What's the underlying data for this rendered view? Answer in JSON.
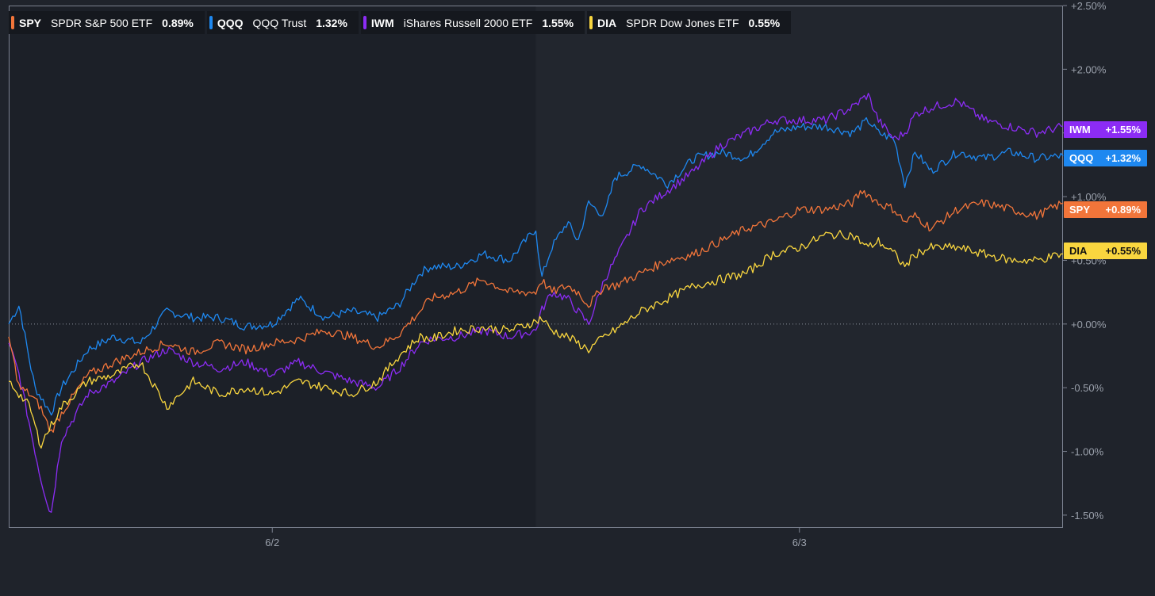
{
  "legend": [
    {
      "ticker": "SPY",
      "name": "SPDR S&P 500 ETF",
      "change": "0.89%",
      "color": "#f2753a"
    },
    {
      "ticker": "QQQ",
      "name": "QQQ Trust",
      "change": "1.32%",
      "color": "#1e88f0"
    },
    {
      "ticker": "IWM",
      "name": "iShares Russell 2000 ETF",
      "change": "1.55%",
      "color": "#8c2cf5"
    },
    {
      "ticker": "DIA",
      "name": "SPDR Dow Jones ETF",
      "change": "0.55%",
      "color": "#f9d63f"
    }
  ],
  "badges": [
    {
      "ticker": "IWM",
      "value": "+1.55%",
      "bg": "#8c2cf5",
      "fg": "#ffffff"
    },
    {
      "ticker": "QQQ",
      "value": "+1.32%",
      "bg": "#1e88f0",
      "fg": "#ffffff"
    },
    {
      "ticker": "SPY",
      "value": "+0.89%",
      "bg": "#f2753a",
      "fg": "#ffffff"
    },
    {
      "ticker": "DIA",
      "value": "+0.55%",
      "bg": "#f9d63f",
      "fg": "#111111"
    }
  ],
  "chart_data": {
    "type": "line",
    "x_unit": "trading session",
    "x_ticks": [
      {
        "x": 0.5,
        "label": "6/2"
      },
      {
        "x": 1.5,
        "label": "6/3"
      }
    ],
    "x_range": [
      0,
      2
    ],
    "ylim": [
      -1.6,
      2.5
    ],
    "y_ticks": [
      -1.5,
      -1.0,
      -0.5,
      0.0,
      0.5,
      1.0,
      1.5,
      2.0,
      2.5
    ],
    "y_tick_labels": [
      "-1.50%",
      "-1.00%",
      "-0.50%",
      "+0.00%",
      "+0.50%",
      "+1.00%",
      "+1.50%",
      "+2.00%",
      "+2.50%"
    ],
    "zero_line": true,
    "series": [
      {
        "name": "SPY",
        "color": "#f2753a",
        "x": [
          0,
          0.02,
          0.04,
          0.06,
          0.08,
          0.1,
          0.15,
          0.2,
          0.25,
          0.3,
          0.35,
          0.4,
          0.45,
          0.5,
          0.55,
          0.6,
          0.65,
          0.7,
          0.74,
          0.78,
          0.8,
          0.85,
          0.9,
          0.95,
          1.0,
          1.01,
          1.03,
          1.06,
          1.08,
          1.1,
          1.13,
          1.15,
          1.2,
          1.25,
          1.3,
          1.35,
          1.4,
          1.45,
          1.5,
          1.55,
          1.6,
          1.62,
          1.65,
          1.68,
          1.7,
          1.72,
          1.75,
          1.8,
          1.85,
          1.9,
          1.95,
          2.0
        ],
        "y": [
          -0.1,
          -0.5,
          -0.55,
          -0.65,
          -0.85,
          -0.7,
          -0.4,
          -0.3,
          -0.22,
          -0.15,
          -0.22,
          -0.15,
          -0.2,
          -0.15,
          -0.12,
          -0.05,
          -0.1,
          -0.18,
          -0.08,
          0.1,
          0.2,
          0.25,
          0.35,
          0.25,
          0.25,
          0.35,
          0.25,
          0.3,
          0.25,
          0.15,
          0.3,
          0.3,
          0.4,
          0.5,
          0.55,
          0.65,
          0.75,
          0.8,
          0.9,
          0.9,
          0.95,
          1.05,
          0.95,
          0.9,
          0.8,
          0.85,
          0.75,
          0.9,
          0.95,
          0.9,
          0.85,
          0.95
        ]
      },
      {
        "name": "QQQ",
        "color": "#1e88f0",
        "x": [
          0,
          0.02,
          0.04,
          0.05,
          0.08,
          0.1,
          0.15,
          0.2,
          0.25,
          0.3,
          0.35,
          0.4,
          0.45,
          0.5,
          0.55,
          0.6,
          0.65,
          0.7,
          0.74,
          0.78,
          0.8,
          0.85,
          0.9,
          0.95,
          1.0,
          1.01,
          1.03,
          1.06,
          1.08,
          1.1,
          1.13,
          1.15,
          1.2,
          1.25,
          1.3,
          1.35,
          1.4,
          1.45,
          1.5,
          1.55,
          1.6,
          1.63,
          1.65,
          1.68,
          1.7,
          1.72,
          1.75,
          1.8,
          1.85,
          1.9,
          1.95,
          2.0
        ],
        "y": [
          0.0,
          0.15,
          -0.3,
          -0.5,
          -0.7,
          -0.5,
          -0.2,
          -0.1,
          -0.15,
          0.1,
          0.05,
          0.05,
          -0.02,
          0.0,
          0.2,
          0.05,
          0.1,
          0.05,
          0.15,
          0.4,
          0.45,
          0.45,
          0.55,
          0.5,
          0.75,
          0.35,
          0.6,
          0.8,
          0.65,
          0.95,
          0.85,
          1.15,
          1.25,
          1.1,
          1.3,
          1.35,
          1.3,
          1.5,
          1.55,
          1.55,
          1.5,
          1.6,
          1.5,
          1.45,
          1.1,
          1.35,
          1.2,
          1.35,
          1.3,
          1.35,
          1.3,
          1.32
        ]
      },
      {
        "name": "IWM",
        "color": "#8c2cf5",
        "x": [
          0,
          0.02,
          0.04,
          0.06,
          0.08,
          0.1,
          0.15,
          0.2,
          0.25,
          0.3,
          0.35,
          0.4,
          0.45,
          0.5,
          0.55,
          0.6,
          0.65,
          0.7,
          0.74,
          0.78,
          0.8,
          0.85,
          0.9,
          0.95,
          1.0,
          1.01,
          1.03,
          1.06,
          1.08,
          1.1,
          1.13,
          1.15,
          1.2,
          1.25,
          1.3,
          1.35,
          1.4,
          1.45,
          1.5,
          1.55,
          1.6,
          1.63,
          1.65,
          1.68,
          1.7,
          1.72,
          1.75,
          1.8,
          1.85,
          1.9,
          1.95,
          2.0
        ],
        "y": [
          -0.15,
          -0.4,
          -0.8,
          -1.2,
          -1.5,
          -0.9,
          -0.55,
          -0.45,
          -0.3,
          -0.2,
          -0.3,
          -0.35,
          -0.3,
          -0.4,
          -0.3,
          -0.38,
          -0.45,
          -0.5,
          -0.35,
          -0.15,
          -0.12,
          -0.1,
          -0.05,
          -0.1,
          -0.05,
          0.1,
          0.25,
          0.2,
          0.1,
          0.0,
          0.35,
          0.5,
          0.9,
          1.05,
          1.2,
          1.4,
          1.5,
          1.6,
          1.6,
          1.6,
          1.7,
          1.8,
          1.6,
          1.45,
          1.5,
          1.65,
          1.7,
          1.75,
          1.6,
          1.55,
          1.5,
          1.55
        ]
      },
      {
        "name": "DIA",
        "color": "#f9d63f",
        "x": [
          0,
          0.02,
          0.04,
          0.06,
          0.08,
          0.1,
          0.15,
          0.2,
          0.25,
          0.3,
          0.35,
          0.4,
          0.45,
          0.5,
          0.55,
          0.6,
          0.65,
          0.7,
          0.74,
          0.78,
          0.8,
          0.85,
          0.9,
          0.95,
          1.0,
          1.01,
          1.03,
          1.06,
          1.08,
          1.1,
          1.13,
          1.15,
          1.2,
          1.25,
          1.3,
          1.35,
          1.4,
          1.45,
          1.5,
          1.55,
          1.6,
          1.63,
          1.65,
          1.68,
          1.7,
          1.72,
          1.75,
          1.8,
          1.85,
          1.9,
          1.95,
          2.0
        ],
        "y": [
          -0.45,
          -0.55,
          -0.65,
          -0.95,
          -0.8,
          -0.65,
          -0.45,
          -0.4,
          -0.3,
          -0.65,
          -0.45,
          -0.55,
          -0.5,
          -0.55,
          -0.45,
          -0.5,
          -0.55,
          -0.45,
          -0.25,
          -0.1,
          -0.12,
          -0.05,
          -0.03,
          -0.05,
          0.02,
          0.05,
          -0.05,
          -0.1,
          -0.15,
          -0.2,
          -0.1,
          -0.05,
          0.1,
          0.2,
          0.3,
          0.35,
          0.4,
          0.55,
          0.6,
          0.7,
          0.7,
          0.6,
          0.65,
          0.55,
          0.45,
          0.55,
          0.6,
          0.6,
          0.55,
          0.5,
          0.5,
          0.55
        ]
      }
    ]
  }
}
